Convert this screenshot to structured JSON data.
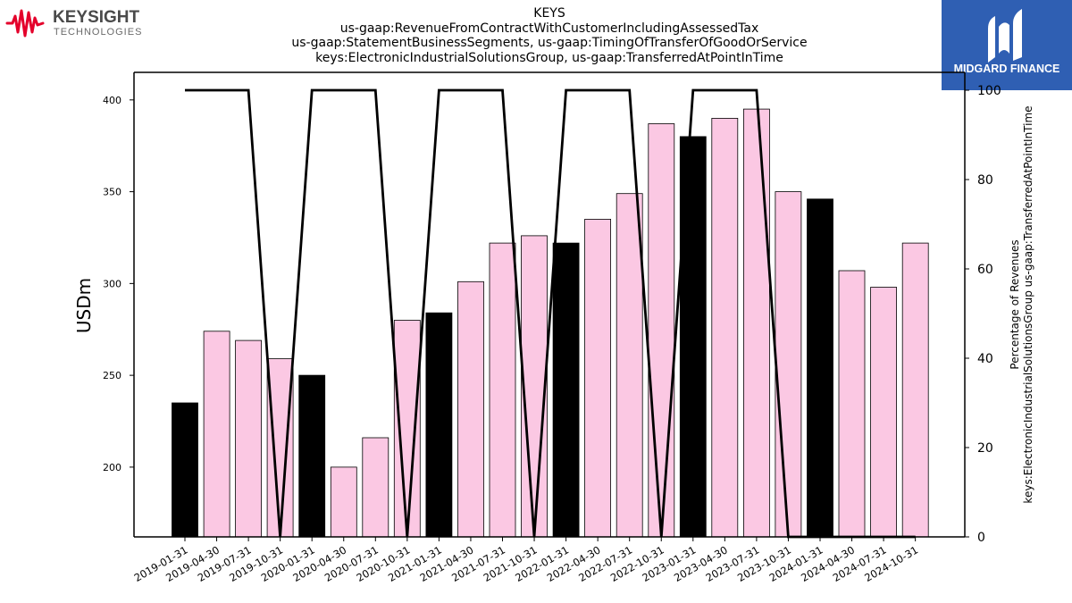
{
  "header": {
    "left_logo": {
      "name": "KEYSIGHT",
      "sub": "TECHNOLOGIES",
      "color": "#e4002b"
    },
    "right_logo": {
      "name": "MIDGARD FINANCE",
      "bg": "#2f5fb3"
    }
  },
  "chart_data": {
    "type": "bar",
    "title_lines": [
      "KEYS",
      "us-gaap:RevenueFromContractWithCustomerIncludingAssessedTax",
      "us-gaap:StatementBusinessSegments, us-gaap:TimingOfTransferOfGoodOrService",
      "keys:ElectronicIndustrialSolutionsGroup, us-gaap:TransferredAtPointInTime"
    ],
    "ylabel": "USDm",
    "y2label_lines": [
      "Percentage of Revenues",
      "keys:ElectronicIndustrialSolutionsGroup us-gaap:TransferredAtPointInTime"
    ],
    "ylim": [
      162,
      415
    ],
    "y2lim": [
      0,
      104
    ],
    "yticks": [
      200,
      250,
      300,
      350,
      400
    ],
    "y2ticks": [
      0,
      20,
      40,
      60,
      80,
      100
    ],
    "categories": [
      "2019-01-31",
      "2019-04-30",
      "2019-07-31",
      "2019-10-31",
      "2020-01-31",
      "2020-04-30",
      "2020-07-31",
      "2020-10-31",
      "2021-01-31",
      "2021-04-30",
      "2021-07-31",
      "2021-10-31",
      "2022-01-31",
      "2022-04-30",
      "2022-07-31",
      "2022-10-31",
      "2023-01-31",
      "2023-04-30",
      "2023-07-31",
      "2023-10-31",
      "2024-01-31",
      "2024-04-30",
      "2024-07-31",
      "2024-10-31"
    ],
    "values": [
      235,
      274,
      269,
      259,
      250,
      200,
      216,
      280,
      284,
      301,
      322,
      326,
      322,
      335,
      349,
      387,
      380,
      390,
      395,
      350,
      346,
      307,
      298,
      322
    ],
    "highlight": [
      true,
      false,
      false,
      false,
      true,
      false,
      false,
      false,
      true,
      false,
      false,
      false,
      true,
      false,
      false,
      false,
      true,
      false,
      false,
      false,
      true,
      false,
      false,
      false
    ],
    "highlight_color": "#000000",
    "bar_color": "#fbc8e3",
    "line_series": {
      "values": [
        100,
        100,
        100,
        0,
        100,
        100,
        100,
        0,
        100,
        100,
        100,
        0,
        100,
        100,
        100,
        0,
        100,
        100,
        100,
        0,
        0,
        0,
        0,
        0
      ],
      "color": "#000000"
    },
    "grid": false
  }
}
